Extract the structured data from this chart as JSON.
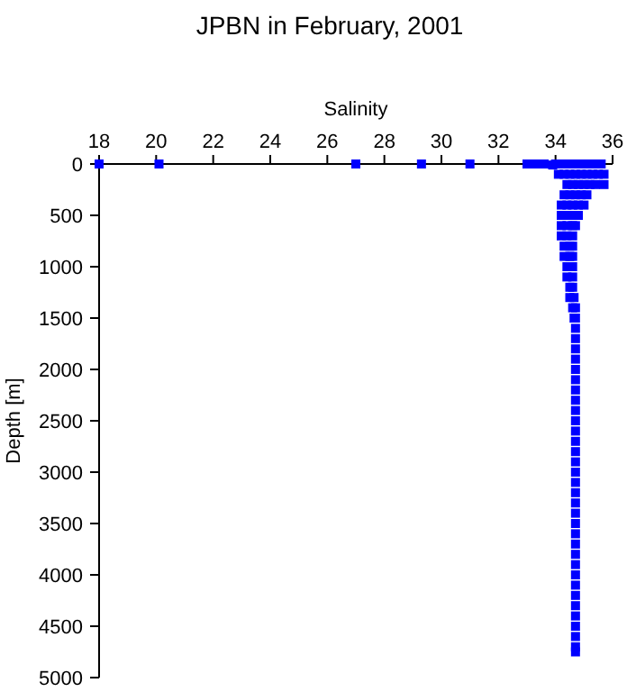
{
  "chart_data": {
    "type": "scatter",
    "title": "JPBN in February, 2001",
    "xlabel": "Salinity",
    "ylabel": "Depth [m]",
    "xlim": [
      18,
      36
    ],
    "xticks": [
      18,
      20,
      22,
      24,
      26,
      28,
      30,
      32,
      34,
      36
    ],
    "ylim": [
      5000,
      0
    ],
    "yticks": [
      0,
      500,
      1000,
      1500,
      2000,
      2500,
      3000,
      3500,
      4000,
      4500,
      5000
    ],
    "grid": false,
    "marker": "square",
    "series": [
      {
        "color": "#0000ff",
        "x": [
          18.0,
          20.1,
          27.0,
          29.3,
          31.0,
          33.0,
          33.3,
          33.6,
          33.9,
          34.0,
          34.2,
          34.4,
          34.6,
          34.8,
          35.0,
          35.2,
          35.4,
          35.6,
          34.1,
          34.3,
          34.5,
          34.7,
          34.9,
          35.1,
          35.3,
          35.5,
          35.7,
          34.4,
          34.6,
          34.8,
          35.0,
          35.2,
          35.4,
          35.7,
          34.3,
          34.5,
          34.7,
          34.9,
          35.1,
          34.2,
          34.4,
          34.6,
          34.8,
          35.0,
          34.2,
          34.4,
          34.6,
          34.8,
          34.2,
          34.4,
          34.6,
          34.7,
          34.2,
          34.4,
          34.6,
          34.3,
          34.5,
          34.6,
          34.3,
          34.5,
          34.6,
          34.4,
          34.6,
          34.4,
          34.6,
          34.5,
          34.6,
          34.5,
          34.65,
          34.6,
          34.7,
          34.65,
          34.7,
          34.7,
          34.7,
          34.7,
          34.7,
          34.7,
          34.7,
          34.7,
          34.7,
          34.7,
          34.7,
          34.7,
          34.7,
          34.7,
          34.7,
          34.7,
          34.7,
          34.7,
          34.7,
          34.7,
          34.7,
          34.7,
          34.7,
          34.7,
          34.7,
          34.7,
          34.7,
          34.7,
          34.7,
          34.7,
          34.7,
          34.7,
          34.7,
          34.7
        ],
        "values": [
          0,
          0,
          0,
          0,
          0,
          0,
          0,
          0,
          10,
          0,
          0,
          0,
          0,
          0,
          0,
          0,
          0,
          0,
          100,
          100,
          100,
          100,
          100,
          100,
          100,
          100,
          100,
          200,
          200,
          200,
          200,
          200,
          200,
          200,
          300,
          300,
          300,
          300,
          300,
          400,
          400,
          400,
          400,
          400,
          500,
          500,
          500,
          500,
          600,
          600,
          600,
          600,
          700,
          700,
          700,
          800,
          800,
          800,
          900,
          900,
          900,
          1000,
          1000,
          1100,
          1100,
          1200,
          1200,
          1300,
          1300,
          1400,
          1400,
          1500,
          1500,
          1600,
          1700,
          1800,
          1900,
          2000,
          2100,
          2200,
          2300,
          2400,
          2500,
          2600,
          2700,
          2800,
          2900,
          3000,
          3100,
          3200,
          3300,
          3400,
          3500,
          3600,
          3700,
          3800,
          3900,
          4000,
          4100,
          4200,
          4300,
          4400,
          4500,
          4600,
          4700,
          4750
        ]
      }
    ]
  }
}
